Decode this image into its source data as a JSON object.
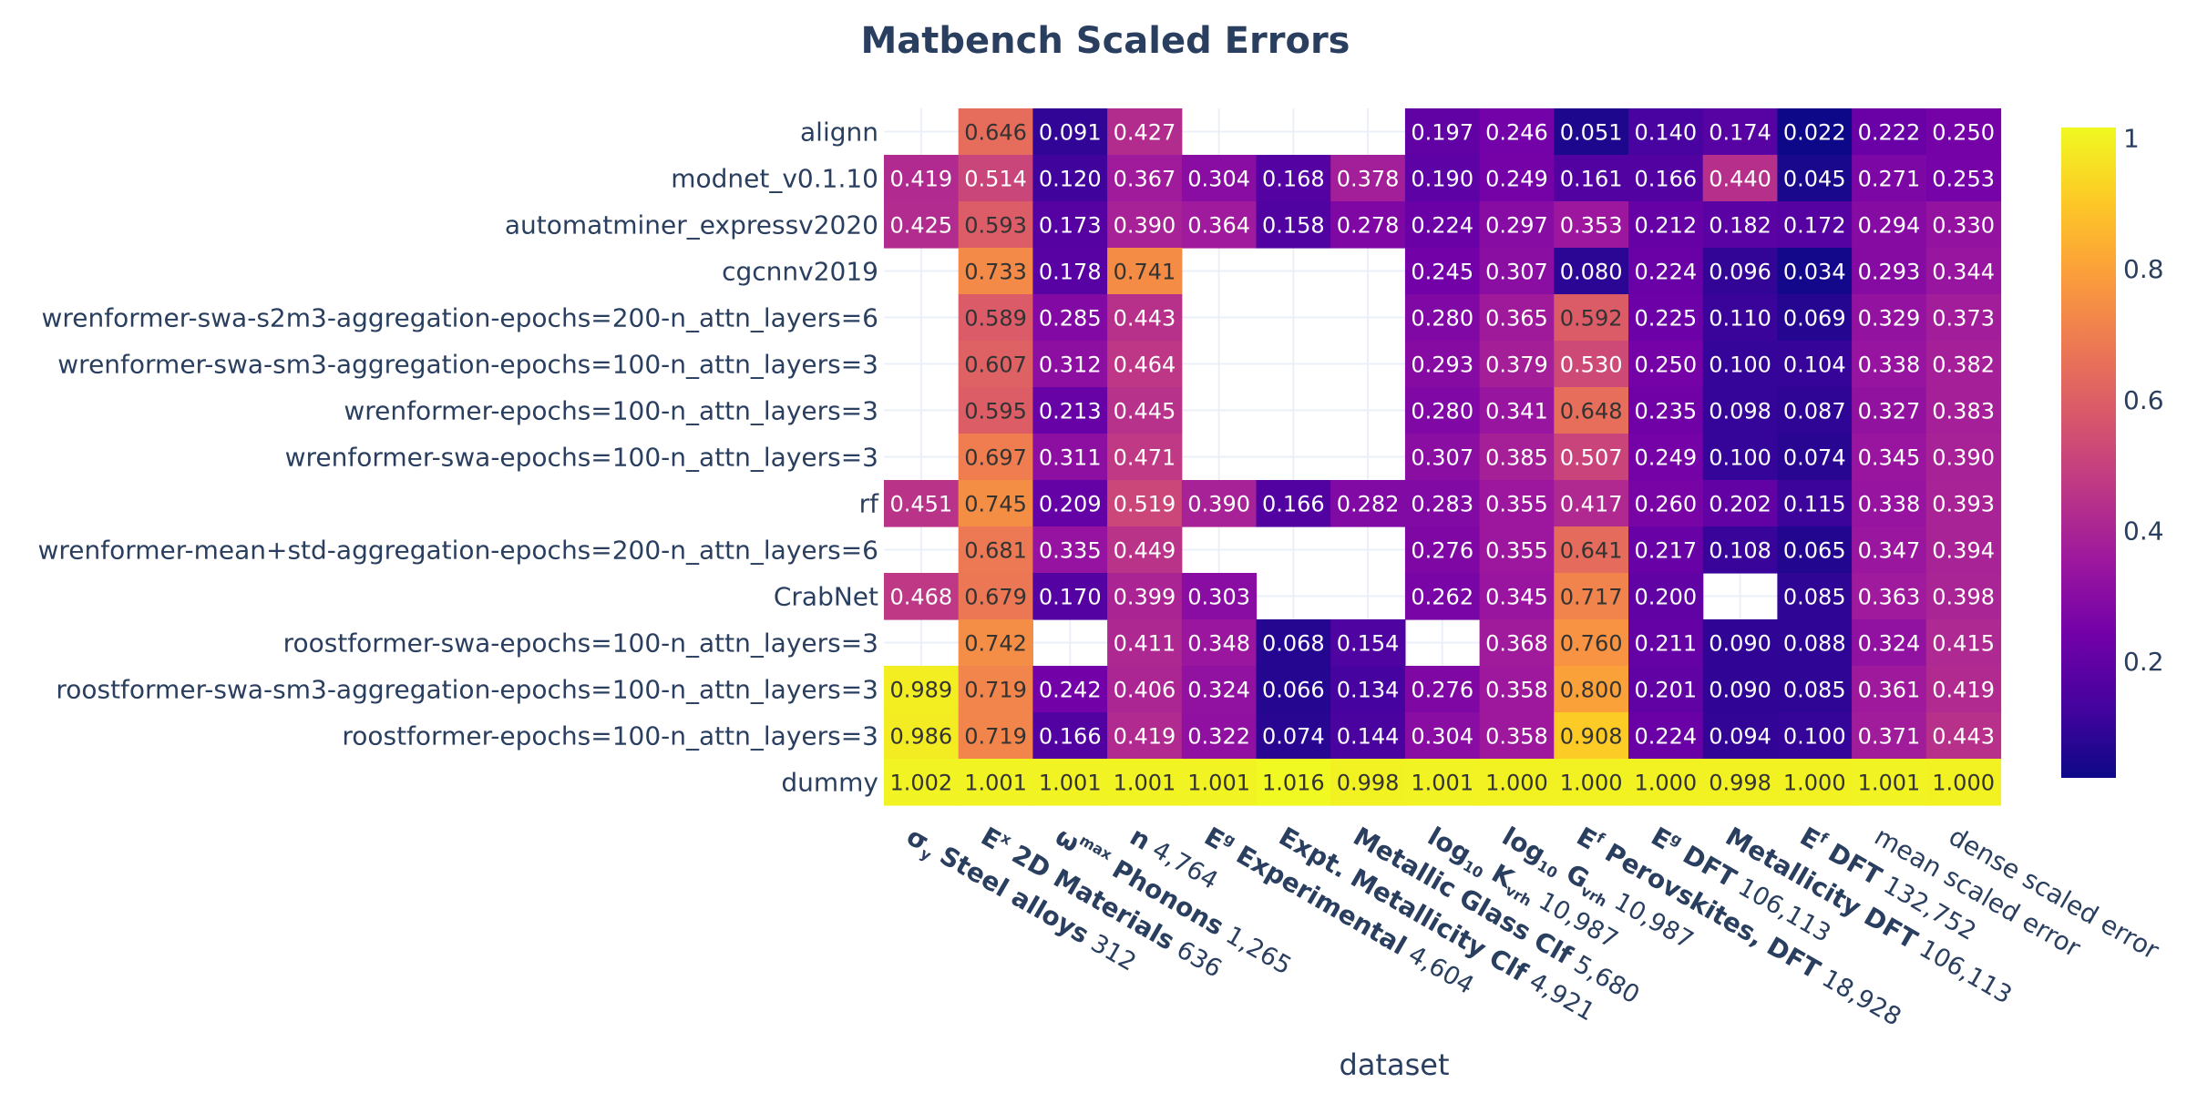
{
  "chart_data": {
    "type": "heatmap",
    "title": "Matbench Scaled Errors",
    "xlabel": "dataset",
    "ylabel": "",
    "rows": [
      "alignn",
      "modnet_v0.1.10",
      "automatminer_expressv2020",
      "cgcnnv2019",
      "wrenformer-swa-s2m3-aggregation-epochs=200-n_attn_layers=6",
      "wrenformer-swa-sm3-aggregation-epochs=100-n_attn_layers=3",
      "wrenformer-epochs=100-n_attn_layers=3",
      "wrenformer-swa-epochs=100-n_attn_layers=3",
      "rf",
      "wrenformer-mean+std-aggregation-epochs=200-n_attn_layers=6",
      "CrabNet",
      "roostformer-swa-epochs=100-n_attn_layers=3",
      "roostformer-swa-sm3-aggregation-epochs=100-n_attn_layers=3",
      "roostformer-epochs=100-n_attn_layers=3",
      "dummy"
    ],
    "columns": [
      {
        "sym": "σ",
        "sub": "y",
        "sup": "",
        "name": "Steel alloys",
        "count": "312"
      },
      {
        "sym": "E",
        "sub": "",
        "sup": "x",
        "name": "2D Materials",
        "count": "636"
      },
      {
        "sym": "ω",
        "sub": "",
        "sup": "max",
        "name": "Phonons",
        "count": "1,265"
      },
      {
        "sym": "n",
        "sub": "",
        "sup": "",
        "name": "",
        "count": "4,764"
      },
      {
        "sym": "E",
        "sub": "",
        "sup": "g",
        "name": "Experimental",
        "count": "4,604"
      },
      {
        "sym": "",
        "sub": "",
        "sup": "",
        "name": "Expt. Metallicity Clf",
        "count": "4,921"
      },
      {
        "sym": "",
        "sub": "",
        "sup": "",
        "name": "Metallic Glass Clf",
        "count": "5,680"
      },
      {
        "sym": "log",
        "sub": "10",
        "sup": "",
        "name": "K",
        "name_sub": "vrh",
        "count": "10,987"
      },
      {
        "sym": "log",
        "sub": "10",
        "sup": "",
        "name": "G",
        "name_sub": "vrh",
        "count": "10,987"
      },
      {
        "sym": "E",
        "sub": "",
        "sup": "f",
        "name": "Perovskites, DFT",
        "count": "18,928"
      },
      {
        "sym": "E",
        "sub": "",
        "sup": "g",
        "name": "DFT",
        "count": "106,113"
      },
      {
        "sym": "",
        "sub": "",
        "sup": "",
        "name": "Metallicity DFT",
        "count": "106,113"
      },
      {
        "sym": "E",
        "sub": "",
        "sup": "f",
        "name": "DFT",
        "count": "132,752"
      },
      {
        "sym": "",
        "sub": "",
        "sup": "",
        "name": "mean scaled error",
        "count": "",
        "plain": true
      },
      {
        "sym": "",
        "sub": "",
        "sup": "",
        "name": "dense scaled error",
        "count": "",
        "plain": true
      }
    ],
    "values": [
      [
        null,
        0.646,
        0.091,
        0.427,
        null,
        null,
        null,
        0.197,
        0.246,
        0.051,
        0.14,
        0.174,
        0.022,
        0.222,
        0.25
      ],
      [
        0.419,
        0.514,
        0.12,
        0.367,
        0.304,
        0.168,
        0.378,
        0.19,
        0.249,
        0.161,
        0.166,
        0.44,
        0.045,
        0.271,
        0.253
      ],
      [
        0.425,
        0.593,
        0.173,
        0.39,
        0.364,
        0.158,
        0.278,
        0.224,
        0.297,
        0.353,
        0.212,
        0.182,
        0.172,
        0.294,
        0.33
      ],
      [
        null,
        0.733,
        0.178,
        0.741,
        null,
        null,
        null,
        0.245,
        0.307,
        0.08,
        0.224,
        0.096,
        0.034,
        0.293,
        0.344
      ],
      [
        null,
        0.589,
        0.285,
        0.443,
        null,
        null,
        null,
        0.28,
        0.365,
        0.592,
        0.225,
        0.11,
        0.069,
        0.329,
        0.373
      ],
      [
        null,
        0.607,
        0.312,
        0.464,
        null,
        null,
        null,
        0.293,
        0.379,
        0.53,
        0.25,
        0.1,
        0.104,
        0.338,
        0.382
      ],
      [
        null,
        0.595,
        0.213,
        0.445,
        null,
        null,
        null,
        0.28,
        0.341,
        0.648,
        0.235,
        0.098,
        0.087,
        0.327,
        0.383
      ],
      [
        null,
        0.697,
        0.311,
        0.471,
        null,
        null,
        null,
        0.307,
        0.385,
        0.507,
        0.249,
        0.1,
        0.074,
        0.345,
        0.39
      ],
      [
        0.451,
        0.745,
        0.209,
        0.519,
        0.39,
        0.166,
        0.282,
        0.283,
        0.355,
        0.417,
        0.26,
        0.202,
        0.115,
        0.338,
        0.393
      ],
      [
        null,
        0.681,
        0.335,
        0.449,
        null,
        null,
        null,
        0.276,
        0.355,
        0.641,
        0.217,
        0.108,
        0.065,
        0.347,
        0.394
      ],
      [
        0.468,
        0.679,
        0.17,
        0.399,
        0.303,
        null,
        null,
        0.262,
        0.345,
        0.717,
        0.2,
        null,
        0.085,
        0.363,
        0.398
      ],
      [
        null,
        0.742,
        null,
        0.411,
        0.348,
        0.068,
        0.154,
        null,
        0.368,
        0.76,
        0.211,
        0.09,
        0.088,
        0.324,
        0.415
      ],
      [
        0.989,
        0.719,
        0.242,
        0.406,
        0.324,
        0.066,
        0.134,
        0.276,
        0.358,
        0.8,
        0.201,
        0.09,
        0.085,
        0.361,
        0.419
      ],
      [
        0.986,
        0.719,
        0.166,
        0.419,
        0.322,
        0.074,
        0.144,
        0.304,
        0.358,
        0.908,
        0.224,
        0.094,
        0.1,
        0.371,
        0.443
      ],
      [
        1.002,
        1.001,
        1.001,
        1.001,
        1.001,
        1.016,
        0.998,
        1.001,
        1.0,
        1.0,
        1.0,
        0.998,
        1.0,
        1.001,
        1.0
      ]
    ],
    "colorscale": "plasma",
    "zlim": [
      0.022,
      1.016
    ],
    "colorbar_ticks": [
      "0.2",
      "0.4",
      "0.6",
      "0.8",
      "1"
    ],
    "colorbar_tick_values": [
      0.2,
      0.4,
      0.6,
      0.8,
      1.0
    ],
    "grid": true,
    "colors": {
      "title": "#2a3f5f",
      "text": "#2a3f5f",
      "grid": "#ebf0f8",
      "cell_text_dark": "#333333",
      "cell_text_light": "#ffffff"
    }
  }
}
